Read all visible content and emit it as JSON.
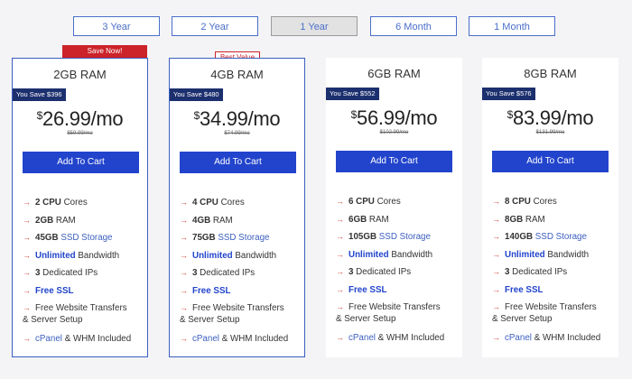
{
  "tabs": [
    "3 Year",
    "2 Year",
    "1 Year",
    "6 Month",
    "1 Month"
  ],
  "active_tab": "1 Year",
  "plans": [
    {
      "ribbon": "Save Now!",
      "ram": "2GB RAM",
      "save": "You Save $396",
      "currency": "$",
      "price": "26.99/mo",
      "old_price": "$59.99/mo",
      "cart": "Add To Cart",
      "f_cpu_num": "2 CPU",
      "f_cpu": " Cores",
      "f_ram": "2GB",
      "f_ram_rest": " RAM",
      "f_ssd_num": "45GB",
      "f_ssd": " SSD Storage",
      "f_bw_bold": "Unlimited",
      "f_bw": " Bandwidth",
      "f_ip_num": "3",
      "f_ip": " Dedicated IPs",
      "f_ssl": "Free SSL",
      "f_transfer_1": "Free Website Transfers",
      "f_transfer_2": "& Server Setup",
      "f_cpanel_1": "cPanel",
      "f_cpanel_2": " & WHM Included"
    },
    {
      "ribbon": "Best Value",
      "ram": "4GB RAM",
      "save": "You Save $480",
      "currency": "$",
      "price": "34.99/mo",
      "old_price": "$74.99/mo",
      "cart": "Add To Cart",
      "f_cpu_num": "4 CPU",
      "f_cpu": " Cores",
      "f_ram": "4GB",
      "f_ram_rest": " RAM",
      "f_ssd_num": "75GB",
      "f_ssd": " SSD Storage",
      "f_bw_bold": "Unlimited",
      "f_bw": " Bandwidth",
      "f_ip_num": "3",
      "f_ip": " Dedicated IPs",
      "f_ssl": "Free SSL",
      "f_transfer_1": "Free Website Transfers",
      "f_transfer_2": "& Server Setup",
      "f_cpanel_1": "cPanel",
      "f_cpanel_2": " & WHM Included"
    },
    {
      "ram": "6GB RAM",
      "save": "You Save $552",
      "currency": "$",
      "price": "56.99/mo",
      "old_price": "$102.99/mo",
      "cart": "Add To Cart",
      "f_cpu_num": "6 CPU",
      "f_cpu": " Cores",
      "f_ram": "6GB",
      "f_ram_rest": " RAM",
      "f_ssd_num": "105GB",
      "f_ssd": " SSD Storage",
      "f_bw_bold": "Unlimited",
      "f_bw": " Bandwidth",
      "f_ip_num": "3",
      "f_ip": " Dedicated IPs",
      "f_ssl": "Free SSL",
      "f_transfer_1": "Free Website Transfers",
      "f_transfer_2": "& Server Setup",
      "f_cpanel_1": "cPanel",
      "f_cpanel_2": " & WHM Included"
    },
    {
      "ram": "8GB RAM",
      "save": "You Save $576",
      "currency": "$",
      "price": "83.99/mo",
      "old_price": "$131.99/mo",
      "cart": "Add To Cart",
      "f_cpu_num": "8 CPU",
      "f_cpu": " Cores",
      "f_ram": "8GB",
      "f_ram_rest": " RAM",
      "f_ssd_num": "140GB",
      "f_ssd": " SSD Storage",
      "f_bw_bold": "Unlimited",
      "f_bw": " Bandwidth",
      "f_ip_num": "3",
      "f_ip": " Dedicated IPs",
      "f_ssl": "Free SSL",
      "f_transfer_1": "Free Website Transfers",
      "f_transfer_2": "& Server Setup",
      "f_cpanel_1": "cPanel",
      "f_cpanel_2": " & WHM Included"
    }
  ],
  "colors": {
    "accent": "#2244cc",
    "ribbon_red": "#cc2229",
    "save_badge": "#1c2f6e",
    "arrow": "#d64a42"
  },
  "icons": {
    "feature_bullet": "arrow-right-icon"
  }
}
